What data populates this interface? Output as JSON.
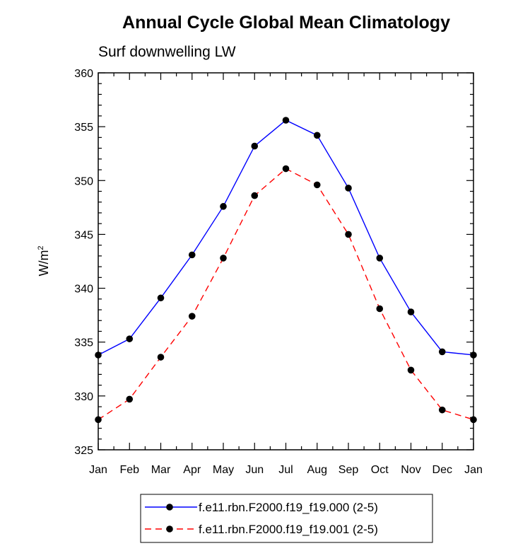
{
  "chart_data": {
    "type": "line",
    "title": "Annual Cycle Global Mean Climatology",
    "subtitle": "Surf downwelling LW",
    "ylabel": "W/m",
    "ylabel_superscript": "2",
    "xlabel": "",
    "categories": [
      "Jan",
      "Feb",
      "Mar",
      "Apr",
      "May",
      "Jun",
      "Jul",
      "Aug",
      "Sep",
      "Oct",
      "Nov",
      "Dec",
      "Jan"
    ],
    "ylim": [
      325,
      360
    ],
    "yticks": [
      325,
      330,
      335,
      340,
      345,
      350,
      355,
      360
    ],
    "series": [
      {
        "name": "f.e11.rbn.F2000.f19_f19.000 (2-5)",
        "color": "#0000ff",
        "dash": "solid",
        "values": [
          333.8,
          335.3,
          339.1,
          343.1,
          347.6,
          353.2,
          355.6,
          354.2,
          349.3,
          342.8,
          337.8,
          334.1,
          333.8
        ]
      },
      {
        "name": "f.e11.rbn.F2000.f19_f19.001 (2-5)",
        "color": "#ff0000",
        "dash": "dashed",
        "values": [
          327.8,
          329.7,
          333.6,
          337.4,
          342.8,
          348.6,
          351.1,
          349.6,
          345.0,
          338.1,
          332.4,
          328.7,
          327.8
        ]
      }
    ],
    "legend": "bottom-center",
    "grid": false
  }
}
